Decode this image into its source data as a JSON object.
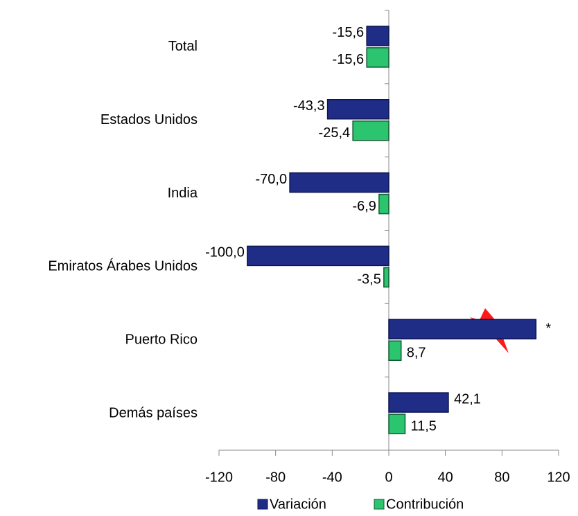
{
  "chart_data": {
    "type": "bar",
    "orientation": "horizontal",
    "categories": [
      "Total",
      "Estados Unidos",
      "India",
      "Emiratos Árabes Unidos",
      "Puerto Rico",
      "Demás países"
    ],
    "series": [
      {
        "name": "Variación",
        "color": "#1f2d86",
        "values": [
          -15.6,
          -43.3,
          -70.0,
          -100.0,
          104,
          42.1
        ],
        "value_labels": [
          "-15,6",
          "-43,3",
          "-70,0",
          "-100,0",
          null,
          "42,1"
        ]
      },
      {
        "name": "Contribución",
        "color": "#2bc46f",
        "values": [
          -15.6,
          -25.4,
          -6.9,
          -3.5,
          8.7,
          11.5
        ],
        "value_labels": [
          "-15,6",
          "-25,4",
          "-6,9",
          "-3,5",
          "8,7",
          "11,5"
        ]
      }
    ],
    "annotation": "*",
    "xlim": [
      -120,
      120
    ],
    "xticks": [
      -120,
      -80,
      -40,
      0,
      40,
      80,
      120
    ],
    "grid": false,
    "legend": "bottom"
  }
}
